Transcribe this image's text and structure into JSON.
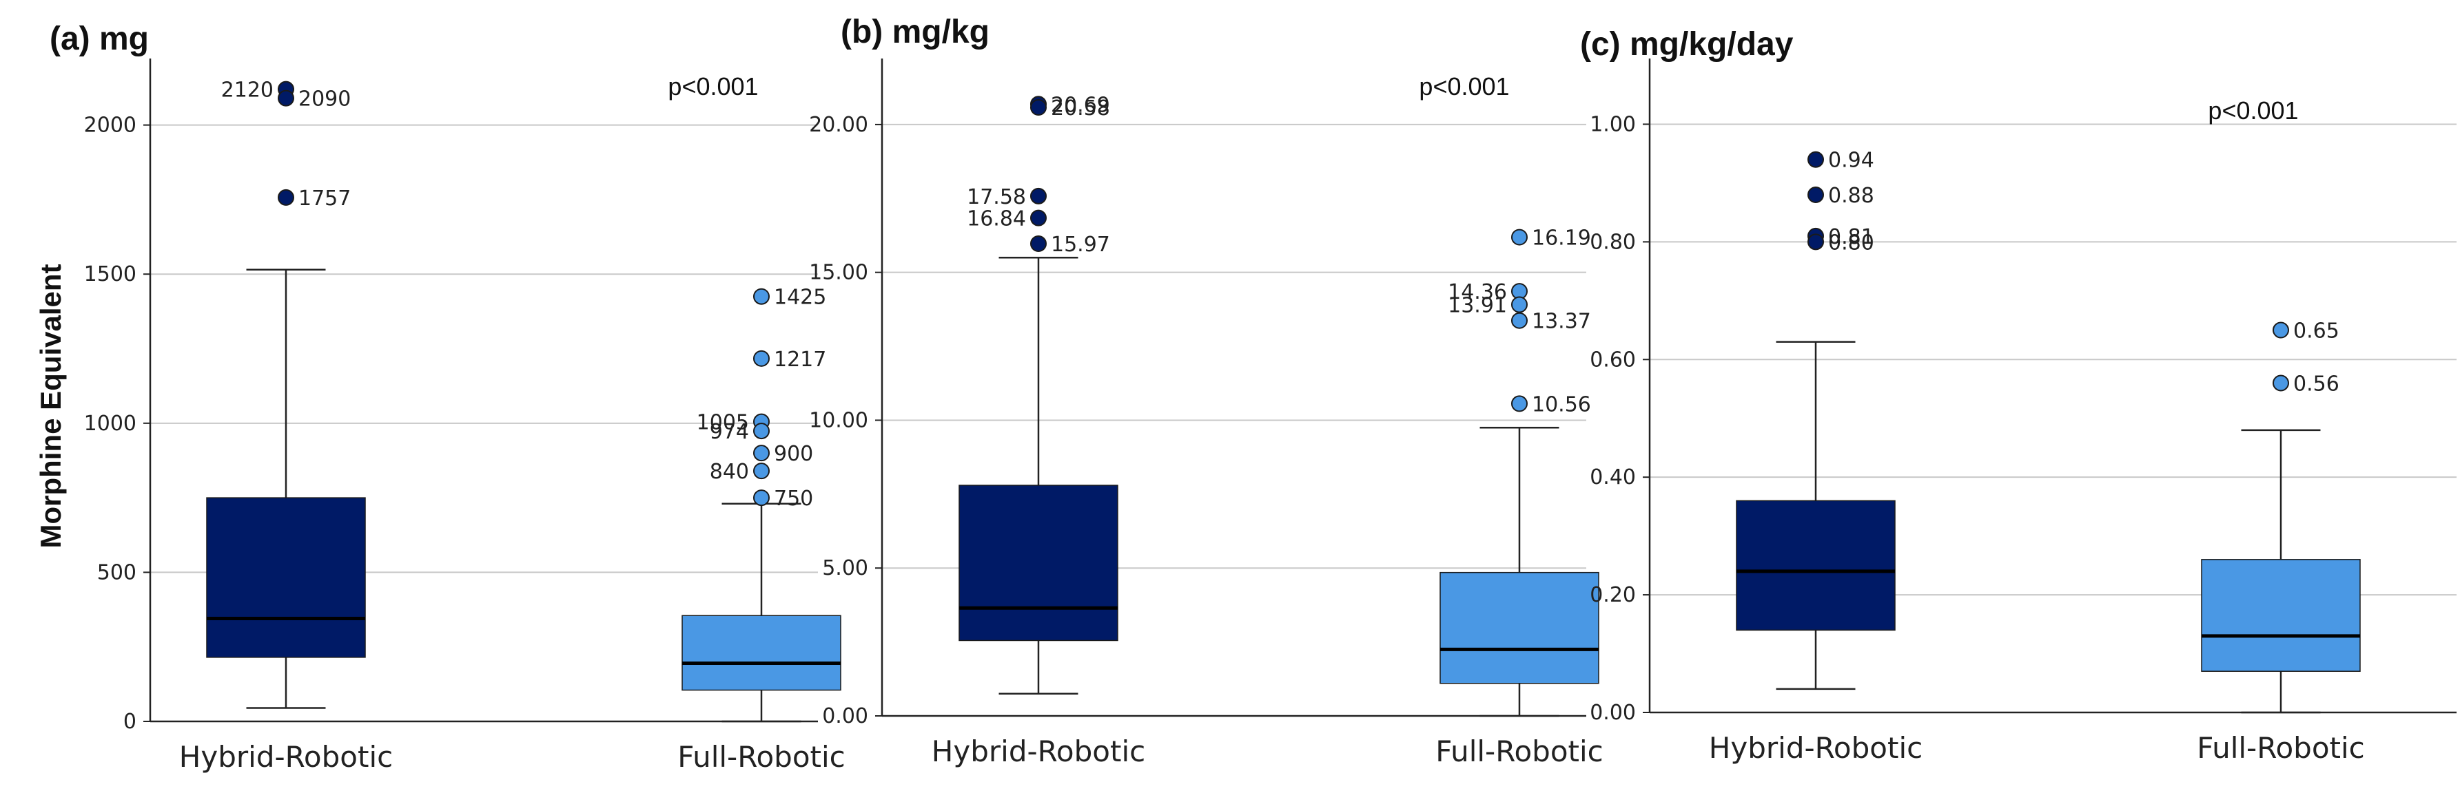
{
  "y_axis_label": "Morphine Equivalent",
  "colors": {
    "hybrid": "#001a66",
    "full": "#4a98e4",
    "grid": "#c8c8c8",
    "axis": "#222222"
  },
  "chart_data": [
    {
      "type": "box",
      "title": "(a) mg",
      "annotation": "p<0.001",
      "ylim": [
        0,
        2200
      ],
      "yticks": [
        0,
        500,
        1000,
        1500,
        2000
      ],
      "ytick_labels": [
        "0",
        "500",
        "1000",
        "1500",
        "2000"
      ],
      "categories": [
        "Hybrid-Robotic",
        "Full-Robotic"
      ],
      "boxes": [
        {
          "category": "Hybrid-Robotic",
          "min": 45,
          "q1": 215,
          "median": 345,
          "q3": 750,
          "max": 1515,
          "outliers": [
            {
              "value": 2120,
              "label": "2120"
            },
            {
              "value": 2090,
              "label": "2090"
            },
            {
              "value": 1757,
              "label": "1757"
            }
          ]
        },
        {
          "category": "Full-Robotic",
          "min": 0,
          "q1": 105,
          "median": 195,
          "q3": 355,
          "max": 730,
          "outliers": [
            {
              "value": 1425,
              "label": "1425"
            },
            {
              "value": 1217,
              "label": "1217"
            },
            {
              "value": 1005,
              "label": "1005"
            },
            {
              "value": 974,
              "label": "974"
            },
            {
              "value": 900,
              "label": "900"
            },
            {
              "value": 840,
              "label": "840"
            },
            {
              "value": 750,
              "label": "750"
            }
          ]
        }
      ]
    },
    {
      "type": "box",
      "title": "(b) mg/kg",
      "annotation": "p<0.001",
      "ylim": [
        0,
        22
      ],
      "yticks": [
        0,
        5,
        10,
        15,
        20
      ],
      "ytick_labels": [
        "0.00",
        "5.00",
        "10.00",
        "15.00",
        "20.00"
      ],
      "categories": [
        "Hybrid-Robotic",
        "Full-Robotic"
      ],
      "boxes": [
        {
          "category": "Hybrid-Robotic",
          "min": 0.75,
          "q1": 2.55,
          "median": 3.65,
          "q3": 7.8,
          "max": 15.5,
          "outliers": [
            {
              "value": 20.69,
              "label": "20.69"
            },
            {
              "value": 20.58,
              "label": "20.58"
            },
            {
              "value": 17.58,
              "label": "17.58"
            },
            {
              "value": 16.84,
              "label": "16.84"
            },
            {
              "value": 15.97,
              "label": "15.97"
            }
          ]
        },
        {
          "category": "Full-Robotic",
          "min": 0,
          "q1": 1.1,
          "median": 2.25,
          "q3": 4.85,
          "max": 9.75,
          "outliers": [
            {
              "value": 16.19,
              "label": "16.19"
            },
            {
              "value": 14.36,
              "label": "14.36"
            },
            {
              "value": 13.91,
              "label": "13.91"
            },
            {
              "value": 13.37,
              "label": "13.37"
            },
            {
              "value": 10.56,
              "label": "10.56"
            }
          ]
        }
      ]
    },
    {
      "type": "box",
      "title": "(c) mg/kg/day",
      "annotation": "p<0.001",
      "ylim": [
        0,
        1.1
      ],
      "yticks": [
        0,
        0.2,
        0.4,
        0.6,
        0.8,
        1.0
      ],
      "ytick_labels": [
        "0.00",
        "0.20",
        "0.40",
        "0.60",
        "0.80",
        "1.00"
      ],
      "categories": [
        "Hybrid-Robotic",
        "Full-Robotic"
      ],
      "boxes": [
        {
          "category": "Hybrid-Robotic",
          "min": 0.04,
          "q1": 0.14,
          "median": 0.24,
          "q3": 0.36,
          "max": 0.63,
          "outliers": [
            {
              "value": 0.94,
              "label": "0.94"
            },
            {
              "value": 0.88,
              "label": "0.88"
            },
            {
              "value": 0.81,
              "label": "0.81"
            },
            {
              "value": 0.8,
              "label": "0.80"
            }
          ]
        },
        {
          "category": "Full-Robotic",
          "min": 0,
          "q1": 0.07,
          "median": 0.13,
          "q3": 0.26,
          "max": 0.48,
          "outliers": [
            {
              "value": 0.65,
              "label": "0.65"
            },
            {
              "value": 0.56,
              "label": "0.56"
            }
          ]
        }
      ]
    }
  ]
}
